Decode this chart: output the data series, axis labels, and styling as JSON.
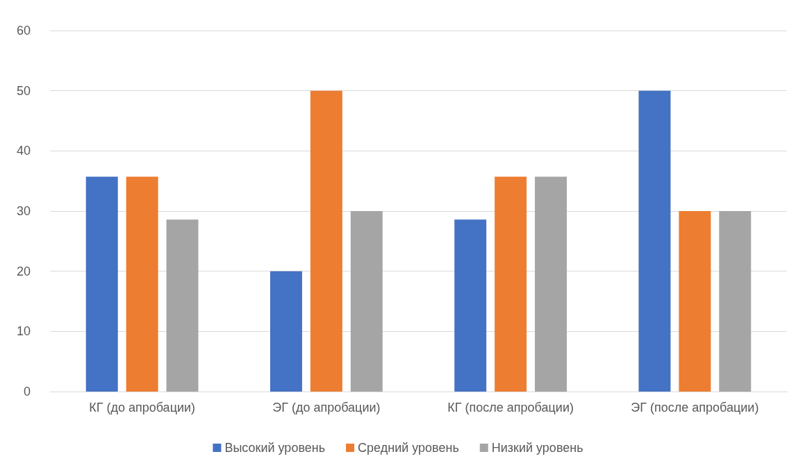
{
  "chart_data": {
    "type": "bar",
    "categories": [
      "КГ (до апробации)",
      "ЭГ (до апробации)",
      "КГ (после апробации)",
      "ЭГ (после апробации)"
    ],
    "series": [
      {
        "name": "Высокий уровень",
        "color": "#4472c4",
        "values": [
          35.7,
          20,
          28.6,
          50
        ]
      },
      {
        "name": "Средний уровень",
        "color": "#ed7d31",
        "values": [
          35.7,
          50,
          35.7,
          30
        ]
      },
      {
        "name": "Низкий уровень",
        "color": "#a5a5a5",
        "values": [
          28.6,
          30,
          35.7,
          30
        ]
      }
    ],
    "ylim": [
      0,
      60
    ],
    "yticks": [
      0,
      10,
      20,
      30,
      40,
      50,
      60
    ],
    "grid": "y",
    "legend": "bottom"
  }
}
